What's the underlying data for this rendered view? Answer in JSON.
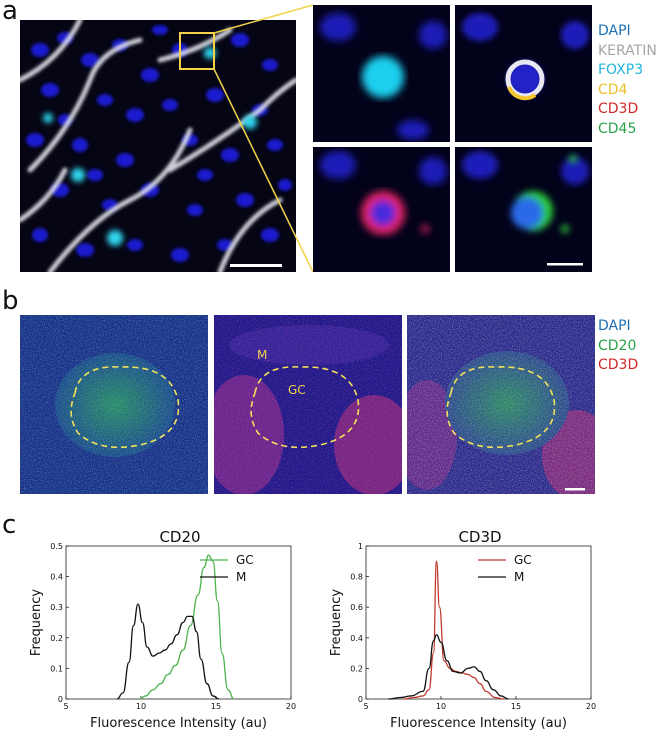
{
  "panel_a": {
    "letter": "a",
    "legend": [
      {
        "label": "DAPI",
        "color": "#1f6fb5"
      },
      {
        "label": "KERATIN",
        "color": "#a6a6a6"
      },
      {
        "label": "FOXP3",
        "color": "#21b6d8"
      },
      {
        "label": "CD4",
        "color": "#e8c02a"
      },
      {
        "label": "CD3D",
        "color": "#d02a2a"
      },
      {
        "label": "CD45",
        "color": "#2aa24a"
      }
    ]
  },
  "panel_b": {
    "letter": "b",
    "legend": [
      {
        "label": "DAPI",
        "color": "#1f6fb5"
      },
      {
        "label": "CD20",
        "color": "#2aa24a"
      },
      {
        "label": "CD3D",
        "color": "#d02a2a"
      }
    ],
    "region_labels": {
      "m": "M",
      "gc": "GC"
    }
  },
  "panel_c": {
    "letter": "c"
  },
  "chart_data": [
    {
      "type": "line",
      "title": "CD20",
      "xlabel": "Fluorescence Intensity (au)",
      "ylabel": "Frequency",
      "xlim": [
        5,
        20
      ],
      "ylim": [
        0,
        0.5
      ],
      "xticks": [
        5,
        10,
        15,
        20
      ],
      "yticks": [
        0,
        0.1,
        0.2,
        0.3,
        0.4,
        0.5
      ],
      "legend_position": "top-right",
      "series": [
        {
          "name": "GC",
          "color": "#4db34d",
          "x": [
            9.9,
            10.3,
            10.8,
            11.3,
            11.8,
            12.3,
            12.8,
            13.3,
            13.8,
            14.2,
            14.5,
            14.8,
            15.1,
            15.4,
            15.8,
            16.2
          ],
          "y": [
            0,
            0.01,
            0.03,
            0.05,
            0.08,
            0.11,
            0.16,
            0.24,
            0.34,
            0.43,
            0.47,
            0.45,
            0.32,
            0.15,
            0.03,
            0
          ]
        },
        {
          "name": "M",
          "color": "#111111",
          "x": [
            8.4,
            8.8,
            9.2,
            9.5,
            9.8,
            10.1,
            10.4,
            10.8,
            11.2,
            11.6,
            12.0,
            12.4,
            12.8,
            13.1,
            13.4,
            13.7,
            14.0,
            14.4,
            14.8,
            15.2
          ],
          "y": [
            0,
            0.02,
            0.12,
            0.24,
            0.31,
            0.25,
            0.17,
            0.14,
            0.15,
            0.16,
            0.18,
            0.21,
            0.25,
            0.27,
            0.27,
            0.22,
            0.13,
            0.05,
            0.01,
            0
          ]
        }
      ]
    },
    {
      "type": "line",
      "title": "CD3D",
      "xlabel": "Fluorescence Intensity (au)",
      "ylabel": "Frequency",
      "xlim": [
        5,
        20
      ],
      "ylim": [
        0,
        1
      ],
      "xticks": [
        5,
        10,
        15,
        20
      ],
      "yticks": [
        0,
        0.2,
        0.4,
        0.6,
        0.8,
        1
      ],
      "legend_position": "top-right",
      "series": [
        {
          "name": "GC",
          "color": "#c0392b",
          "x": [
            7.5,
            8.2,
            8.8,
            9.2,
            9.5,
            9.7,
            9.9,
            10.2,
            10.6,
            11.0,
            11.4,
            11.8,
            12.2,
            12.6,
            13.0,
            13.6,
            14.2
          ],
          "y": [
            0,
            0.01,
            0.02,
            0.06,
            0.3,
            0.9,
            0.6,
            0.25,
            0.2,
            0.18,
            0.17,
            0.16,
            0.14,
            0.1,
            0.05,
            0.01,
            0
          ]
        },
        {
          "name": "M",
          "color": "#111111",
          "x": [
            6.5,
            7.3,
            8.0,
            8.8,
            9.2,
            9.5,
            9.7,
            10.0,
            10.4,
            10.8,
            11.3,
            11.8,
            12.2,
            12.6,
            13.0,
            13.5,
            14.0,
            14.5
          ],
          "y": [
            0,
            0.01,
            0.02,
            0.05,
            0.2,
            0.38,
            0.42,
            0.37,
            0.25,
            0.18,
            0.17,
            0.2,
            0.21,
            0.18,
            0.12,
            0.06,
            0.02,
            0
          ]
        }
      ]
    }
  ]
}
